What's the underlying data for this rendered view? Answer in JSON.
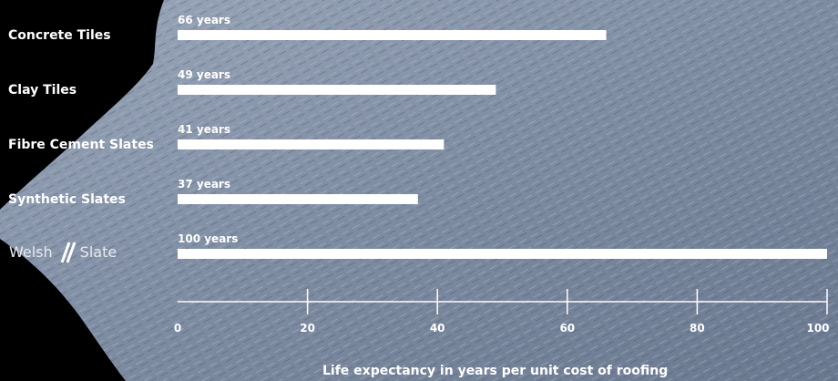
{
  "colors": {
    "background": "#000000",
    "slate_light": "#8f9cb0",
    "slate_dark": "#56657c",
    "bar": "#ffffff",
    "text": "#ffffff"
  },
  "logo": {
    "word1": "Welsh",
    "word2": "Slate"
  },
  "chart_data": {
    "type": "bar",
    "orientation": "horizontal",
    "categories": [
      "Concrete Tiles",
      "Clay Tiles",
      "Fibre Cement Slates",
      "Synthetic Slates",
      "Welsh Slate"
    ],
    "values": [
      66,
      49,
      41,
      37,
      100
    ],
    "value_labels": [
      "66 years",
      "49 years",
      "41 years",
      "37 years",
      "100 years"
    ],
    "xlabel": "Life expectancy in years per unit cost of roofing",
    "xlim": [
      0,
      100
    ],
    "xticks": [
      0,
      20,
      40,
      60,
      80,
      100
    ],
    "grid": false,
    "legend": "none"
  }
}
